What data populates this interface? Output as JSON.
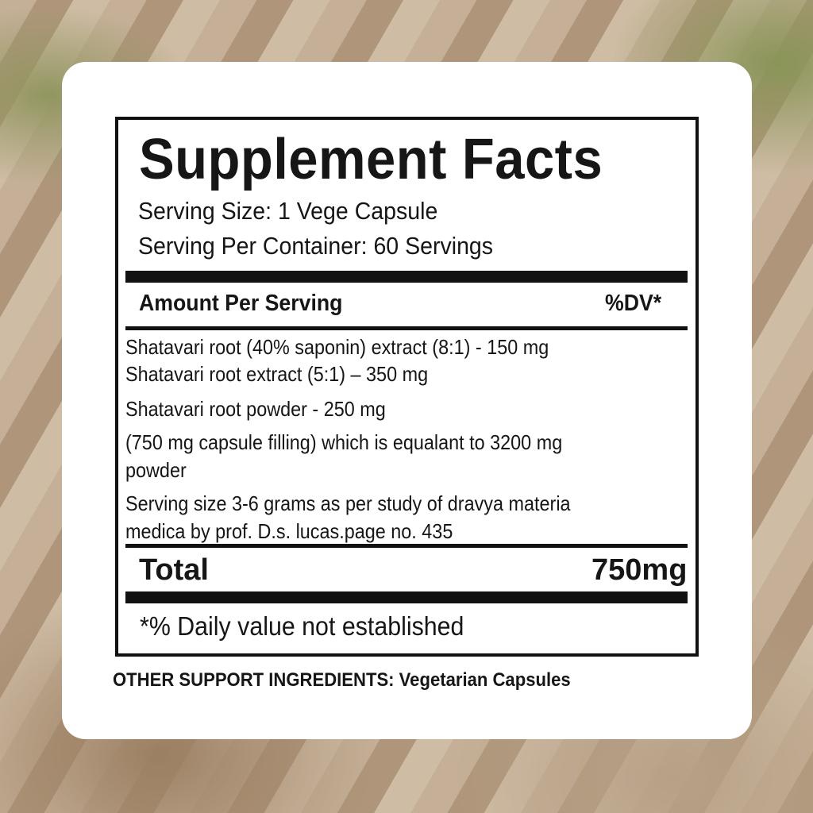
{
  "label": {
    "title": "Supplement Facts",
    "serving_size": "Serving Size: 1 Vege Capsule",
    "servings_per_container": "Serving Per Container: 60 Servings",
    "amount_header": "Amount Per Serving",
    "dv_header": "%DV*",
    "ingredients": [
      "Shatavari root (40% saponin) extract (8:1) - 150 mg",
      "Shatavari root extract (5:1) – 350 mg",
      "Shatavari root powder - 250 mg",
      "(750 mg capsule filling) which is equalant to 3200 mg",
      "powder",
      "Serving size 3-6 grams as per study of dravya materia",
      "medica by prof. D.s. lucas.page no. 435"
    ],
    "total_label": "Total",
    "total_value": "750mg",
    "footnote": "*% Daily value not established"
  },
  "other_ingredients": "OTHER SUPPORT INGREDIENTS: Vegetarian Capsules"
}
